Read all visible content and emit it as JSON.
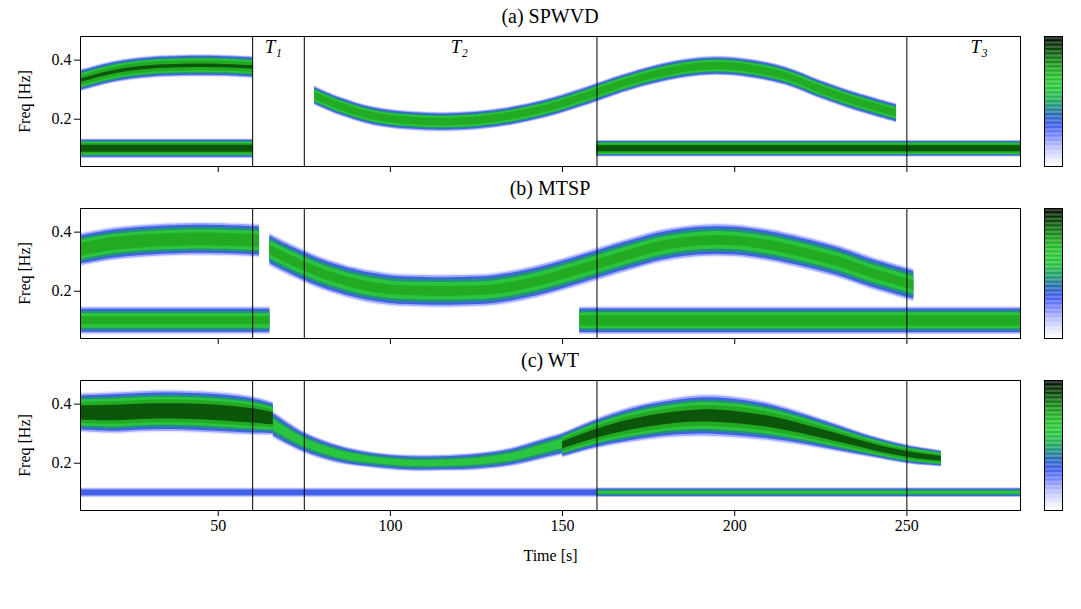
{
  "chart_data": [
    {
      "type": "heatmap",
      "title": "(a) SPWVD",
      "ylabel": "Freq [Hz]",
      "xlim": [
        10,
        283
      ],
      "xticks": [
        50,
        100,
        150,
        200,
        250
      ],
      "ylim": [
        0.04,
        0.48
      ],
      "yticks": [
        0.2,
        0.4
      ],
      "tick_labels": "y",
      "zlim": [
        0,
        1
      ],
      "vlines": [
        60,
        75,
        160,
        250
      ],
      "annotations": [
        {
          "x": 66,
          "y": 0.445,
          "text": "T₁"
        },
        {
          "x": 120,
          "y": 0.445,
          "text": "T₂"
        },
        {
          "x": 271,
          "y": 0.445,
          "text": "T₃"
        }
      ],
      "ridges": [
        {
          "t": [
            10,
            20,
            30,
            40,
            50,
            60
          ],
          "f": [
            0.33,
            0.36,
            0.375,
            0.38,
            0.38,
            0.375
          ],
          "w": [
            0.04,
            0.04,
            0.04,
            0.04,
            0.04,
            0.04
          ],
          "peak": 0.9
        },
        {
          "t": [
            10,
            60
          ],
          "f": [
            0.1,
            0.1
          ],
          "w": [
            0.035,
            0.035
          ],
          "peak": 1
        },
        {
          "t": [
            78,
            85,
            95,
            105,
            115,
            125,
            135,
            145,
            155,
            165,
            175,
            185,
            195,
            205,
            215,
            225,
            235,
            247
          ],
          "f": [
            0.28,
            0.245,
            0.21,
            0.195,
            0.19,
            0.195,
            0.21,
            0.235,
            0.27,
            0.31,
            0.345,
            0.37,
            0.38,
            0.37,
            0.345,
            0.3,
            0.26,
            0.22
          ],
          "w": [
            0.035,
            0.035,
            0.035,
            0.035,
            0.035,
            0.035,
            0.035,
            0.035,
            0.035,
            0.035,
            0.035,
            0.035,
            0.035,
            0.035,
            0.035,
            0.035,
            0.035,
            0.035
          ],
          "peak": 0.85
        },
        {
          "t": [
            160,
            283
          ],
          "f": [
            0.1,
            0.1
          ],
          "w": [
            0.03,
            0.03
          ],
          "peak": 1
        }
      ]
    },
    {
      "type": "heatmap",
      "title": "(b) MTSP",
      "ylabel": "Freq [Hz]",
      "xlim": [
        10,
        283
      ],
      "xticks": [
        50,
        100,
        150,
        200,
        250
      ],
      "ylim": [
        0.04,
        0.48
      ],
      "yticks": [
        0.2,
        0.4
      ],
      "tick_labels": "y",
      "zlim": [
        0,
        1
      ],
      "vlines": [
        60,
        75,
        160,
        250
      ],
      "ridges": [
        {
          "t": [
            10,
            20,
            30,
            40,
            50,
            62
          ],
          "f": [
            0.34,
            0.36,
            0.37,
            0.375,
            0.375,
            0.37
          ],
          "w": [
            0.06,
            0.06,
            0.06,
            0.06,
            0.06,
            0.06
          ],
          "peak": 0.85
        },
        {
          "t": [
            10,
            65
          ],
          "f": [
            0.1,
            0.1
          ],
          "w": [
            0.05,
            0.05
          ],
          "peak": 0.8
        },
        {
          "t": [
            65,
            72,
            80,
            90,
            100,
            110,
            120,
            130,
            140,
            150,
            160,
            170,
            180,
            190,
            200,
            210,
            220,
            230,
            240,
            252
          ],
          "f": [
            0.34,
            0.3,
            0.26,
            0.225,
            0.205,
            0.2,
            0.2,
            0.205,
            0.225,
            0.255,
            0.29,
            0.325,
            0.355,
            0.37,
            0.37,
            0.355,
            0.33,
            0.3,
            0.26,
            0.22
          ],
          "w": [
            0.06,
            0.06,
            0.06,
            0.06,
            0.06,
            0.06,
            0.06,
            0.06,
            0.06,
            0.06,
            0.06,
            0.06,
            0.06,
            0.06,
            0.06,
            0.06,
            0.06,
            0.06,
            0.06,
            0.06
          ],
          "peak": 0.8
        },
        {
          "t": [
            155,
            283
          ],
          "f": [
            0.1,
            0.1
          ],
          "w": [
            0.05,
            0.05
          ],
          "peak": 0.85
        }
      ]
    },
    {
      "type": "heatmap",
      "title": "(c) WT",
      "ylabel": "Freq [Hz]",
      "xlabel": "Time [s]",
      "xlim": [
        10,
        283
      ],
      "xticks": [
        50,
        100,
        150,
        200,
        250
      ],
      "ylim": [
        0.04,
        0.48
      ],
      "yticks": [
        0.2,
        0.4
      ],
      "tick_labels": true,
      "zlim": [
        0,
        1
      ],
      "vlines": [
        60,
        75,
        160,
        250
      ],
      "ridges": [
        {
          "t": [
            10,
            20,
            30,
            40,
            50,
            60,
            66
          ],
          "f": [
            0.37,
            0.37,
            0.375,
            0.375,
            0.37,
            0.36,
            0.35
          ],
          "w": [
            0.07,
            0.075,
            0.075,
            0.075,
            0.075,
            0.07,
            0.06
          ],
          "peak": 1
        },
        {
          "t": [
            66,
            75,
            85,
            95,
            105,
            115,
            125,
            135,
            145,
            155
          ],
          "f": [
            0.33,
            0.27,
            0.23,
            0.21,
            0.2,
            0.2,
            0.205,
            0.22,
            0.25,
            0.28
          ],
          "w": [
            0.05,
            0.04,
            0.035,
            0.03,
            0.03,
            0.03,
            0.032,
            0.035,
            0.04,
            0.045
          ],
          "peak": 0.7
        },
        {
          "t": [
            150,
            160,
            170,
            180,
            190,
            200,
            210,
            220,
            230,
            240,
            250,
            260
          ],
          "f": [
            0.26,
            0.3,
            0.33,
            0.35,
            0.36,
            0.355,
            0.34,
            0.315,
            0.285,
            0.255,
            0.23,
            0.215
          ],
          "w": [
            0.045,
            0.055,
            0.065,
            0.07,
            0.075,
            0.075,
            0.07,
            0.06,
            0.05,
            0.04,
            0.035,
            0.03
          ],
          "peak": 0.95
        },
        {
          "t": [
            10,
            160
          ],
          "f": [
            0.1,
            0.1
          ],
          "w": [
            0.018,
            0.018
          ],
          "peak": 0.45
        },
        {
          "t": [
            160,
            283
          ],
          "f": [
            0.1,
            0.1
          ],
          "w": [
            0.018,
            0.018
          ],
          "peak": 0.65
        }
      ]
    }
  ]
}
